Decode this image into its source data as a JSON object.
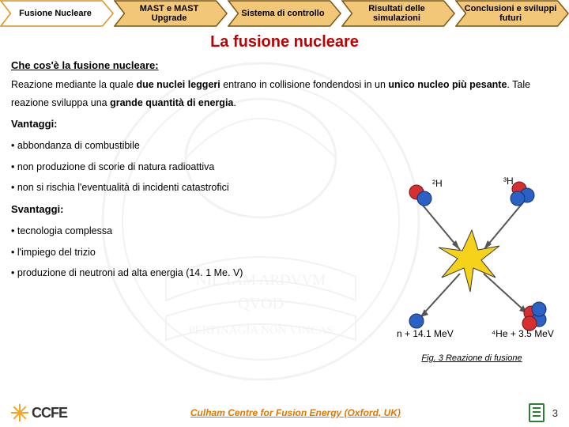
{
  "nav": {
    "items": [
      {
        "label": "Fusione Nucleare",
        "fill": "#ffffff",
        "stroke": "#d9941a"
      },
      {
        "label": "MAST e MAST Upgrade",
        "fill": "#f2c778",
        "stroke": "#7a5510"
      },
      {
        "label": "Sistema di controllo",
        "fill": "#f2c778",
        "stroke": "#7a5510"
      },
      {
        "label": "Risultati delle simulazioni",
        "fill": "#f2c778",
        "stroke": "#7a5510"
      },
      {
        "label": "Conclusioni e sviluppi futuri",
        "fill": "#f2c778",
        "stroke": "#7a5510"
      }
    ]
  },
  "title": "La fusione nucleare",
  "section1_head": "Che cos'è la fusione nucleare:",
  "section1_text": "Reazione mediante la quale <b>due nuclei leggeri</b> entrano in collisione fondendosi in un <b>unico nucleo più pesante</b>. Tale reazione sviluppa una <b>grande quantità di energia</b>.",
  "advantages_head": "Vantaggi:",
  "advantages": [
    "abbondanza di combustibile",
    "non produzione di scorie di natura radioattiva",
    "non si rischia l'eventualità di incidenti catastrofici"
  ],
  "disadvantages_head": "Svantaggi:",
  "disadvantages": [
    "tecnologia complessa",
    "l'impiego del trizio",
    "produzione di neutroni ad alta energia (14. 1 Me. V)"
  ],
  "figure": {
    "labels": {
      "h2": "²H",
      "h3": "³H",
      "he4": "⁴He + 3.5 MeV",
      "n": "n + 14.1 MeV"
    },
    "caption": "Fig. 3 Reazione di fusione",
    "colors": {
      "proton": "#d62f2f",
      "neutron": "#2b60c4",
      "star": "#f6d31a",
      "star_stroke": "#3a3a3a",
      "arrow": "#555555"
    }
  },
  "footer": {
    "org": "CCFE",
    "center": "Culham Centre for Fusion Energy (Oxford, UK)",
    "page": "3"
  },
  "seal": {
    "lines": [
      "NIL TAM ARDVVM",
      "QVOD",
      "PERTINAGIA NON VINCAS"
    ],
    "color": "#888888"
  }
}
